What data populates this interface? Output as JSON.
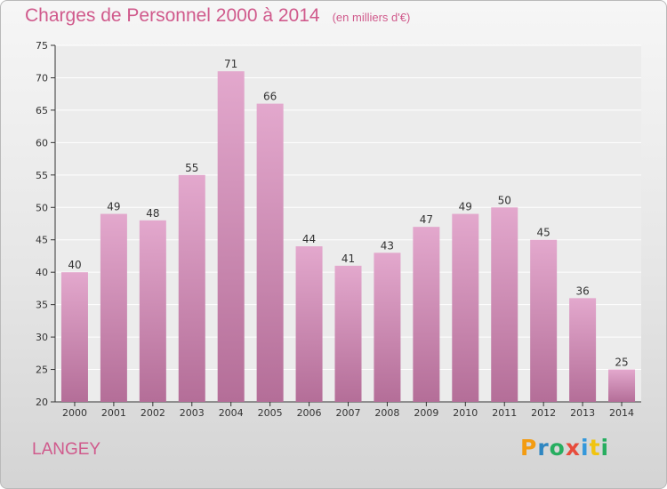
{
  "title": "Charges de Personnel 2000 à 2014",
  "subtitle": "(en milliers d'€)",
  "place": "LANGEY",
  "logo": {
    "letters": [
      "P",
      "r",
      "o",
      "x",
      "i",
      "t",
      "i"
    ],
    "colors": [
      "#f39c12",
      "#2e86c1",
      "#27ae60",
      "#e74c3c",
      "#3498db",
      "#f1c40f",
      "#27ae60"
    ]
  },
  "colors": {
    "title": "#d05a8c",
    "bar_top": "#e3a8cd",
    "bar_bottom": "#b46e98",
    "axis": "#333333"
  },
  "chart_data": {
    "type": "bar",
    "categories": [
      "2000",
      "2001",
      "2002",
      "2003",
      "2004",
      "2005",
      "2006",
      "2007",
      "2008",
      "2009",
      "2010",
      "2011",
      "2012",
      "2013",
      "2014"
    ],
    "values": [
      40,
      49,
      48,
      55,
      71,
      66,
      44,
      41,
      43,
      47,
      49,
      50,
      45,
      36,
      25
    ],
    "ylim": [
      20,
      75
    ],
    "yticks": [
      20,
      25,
      30,
      35,
      40,
      45,
      50,
      55,
      60,
      65,
      70,
      75
    ],
    "grid": true,
    "data_labels": true
  }
}
